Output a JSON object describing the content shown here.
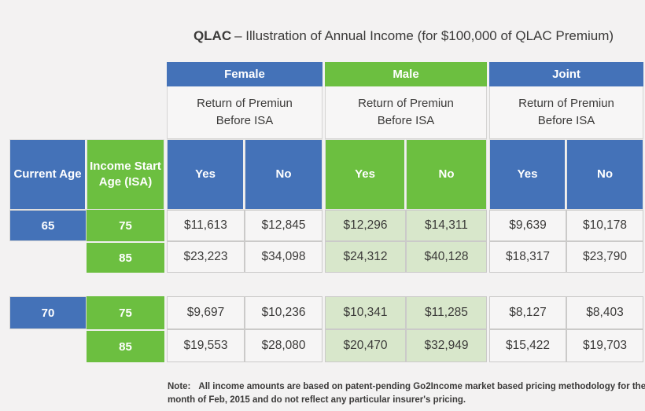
{
  "title": {
    "prefix": "QLAC",
    "rest": "– Illustration of Annual Income (for $100,000 of QLAC Premium)"
  },
  "table": {
    "groups": [
      {
        "label": "Female",
        "subheader_line1": "Return of Premiun",
        "subheader_line2": "Before ISA"
      },
      {
        "label": "Male",
        "subheader_line1": "Return of Premiun",
        "subheader_line2": "Before ISA"
      },
      {
        "label": "Joint",
        "subheader_line1": "Return of Premiun",
        "subheader_line2": "Before ISA"
      }
    ],
    "left_headers": {
      "current_age": "Current Age",
      "isa": "Income Start Age (ISA)"
    },
    "yes_label": "Yes",
    "no_label": "No",
    "row_groups": [
      {
        "current_age": "65",
        "rows": [
          {
            "isa": "75",
            "values": [
              "$11,613",
              "$12,845",
              "$12,296",
              "$14,311",
              "$9,639",
              "$10,178"
            ]
          },
          {
            "isa": "85",
            "values": [
              "$23,223",
              "$34,098",
              "$24,312",
              "$40,128",
              "$18,317",
              "$23,790"
            ]
          }
        ]
      },
      {
        "current_age": "70",
        "rows": [
          {
            "isa": "75",
            "values": [
              "$9,697",
              "$10,236",
              "$10,341",
              "$11,285",
              "$8,127",
              "$8,403"
            ]
          },
          {
            "isa": "85",
            "values": [
              "$19,553",
              "$28,080",
              "$20,470",
              "$32,949",
              "$15,422",
              "$19,703"
            ]
          }
        ]
      }
    ]
  },
  "note": {
    "label": "Note:",
    "text": "All income amounts are based on patent-pending Go2Income market based pricing methodology for the month of  Feb, 2015 and do not reflect any particular insurer's pricing."
  },
  "colors": {
    "blue_header": "#4472b8",
    "green_header": "#6cbf40",
    "male_cell_bg": "#d8e7cb",
    "cell_bg": "#f6f5f5",
    "page_bg": "#f3f2f2",
    "text_dark": "#3b3a39"
  },
  "chart_data": {
    "type": "table",
    "title": "QLAC – Illustration of Annual Income (for $100,000 of QLAC Premium)",
    "column_groups": [
      "Female",
      "Male",
      "Joint"
    ],
    "group_subheader": "Return of Premiun Before ISA",
    "columns": [
      "Current Age",
      "Income Start Age (ISA)",
      "Female Yes",
      "Female No",
      "Male Yes",
      "Male No",
      "Joint Yes",
      "Joint No"
    ],
    "rows": [
      [
        "65",
        "75",
        11613,
        12845,
        12296,
        14311,
        9639,
        10178
      ],
      [
        "",
        "85",
        23223,
        34098,
        24312,
        40128,
        18317,
        23790
      ],
      [
        "70",
        "75",
        9697,
        10236,
        10341,
        11285,
        8127,
        8403
      ],
      [
        "",
        "85",
        19553,
        28080,
        20470,
        32949,
        15422,
        19703
      ]
    ],
    "note": "Note: All income amounts are based on patent-pending Go2Income market based pricing methodology for the month of Feb, 2015 and do not reflect any particular insurer's pricing."
  }
}
